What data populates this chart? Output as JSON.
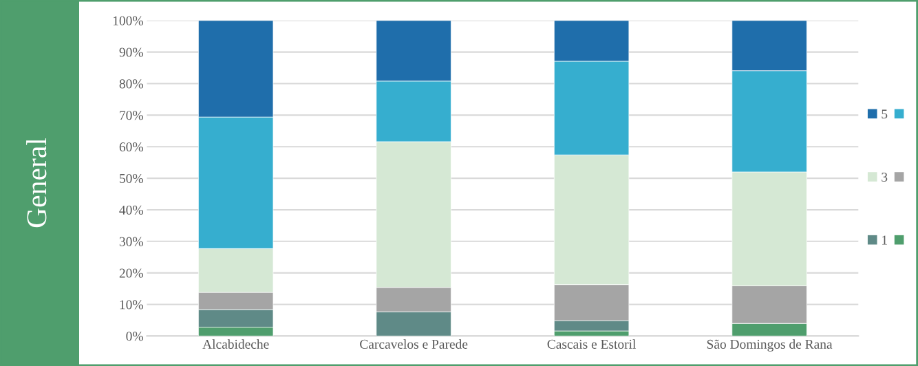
{
  "chart_data": {
    "type": "bar",
    "stacked": true,
    "title": "General",
    "categories": [
      "Alcabideche",
      "Carcavelos e Parede",
      "Cascais e Estoril",
      "São Domingos de Rana"
    ],
    "series": [
      {
        "color": "#4f9e6d",
        "values": [
          2.8,
          0,
          1.6,
          4.0
        ]
      },
      {
        "name": "1",
        "color": "#5f8a87",
        "values": [
          5.6,
          7.7,
          3.3,
          0
        ]
      },
      {
        "color": "#a5a5a5",
        "values": [
          5.4,
          7.7,
          11.4,
          11.9
        ]
      },
      {
        "name": "3",
        "color": "#d5e8d4",
        "values": [
          13.9,
          46.2,
          41.1,
          36.1
        ]
      },
      {
        "color": "#36aecf",
        "values": [
          41.7,
          19.2,
          29.7,
          32.1
        ]
      },
      {
        "name": "5",
        "color": "#1f6eab",
        "values": [
          30.6,
          19.2,
          12.9,
          15.9
        ]
      }
    ],
    "ylim": [
      0,
      100
    ],
    "yticks": [
      {
        "value": 0,
        "label": "0%"
      },
      {
        "value": 10,
        "label": "10%"
      },
      {
        "value": 20,
        "label": "20%"
      },
      {
        "value": 30,
        "label": "30%"
      },
      {
        "value": 40,
        "label": "40%"
      },
      {
        "value": 50,
        "label": "50%"
      },
      {
        "value": 60,
        "label": "60%"
      },
      {
        "value": 70,
        "label": "70%"
      },
      {
        "value": 80,
        "label": "80%"
      },
      {
        "value": 90,
        "label": "90%"
      },
      {
        "value": 100,
        "label": "100%"
      }
    ],
    "grid": "y",
    "legend": "right"
  }
}
